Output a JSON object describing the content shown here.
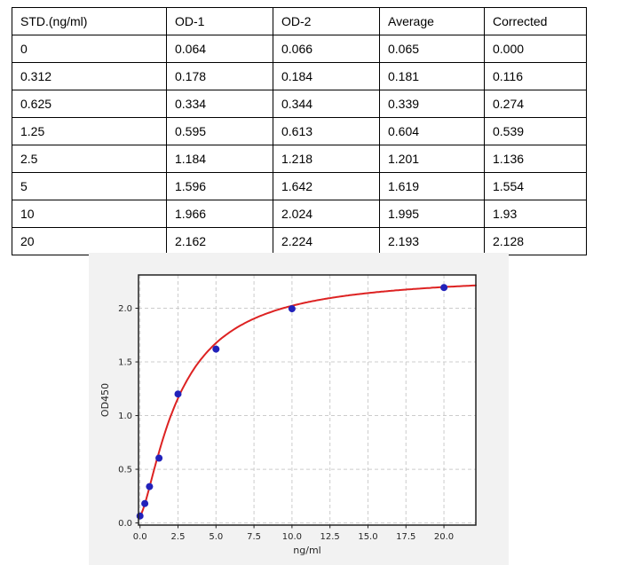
{
  "table": {
    "headers": [
      "STD.(ng/ml)",
      "OD-1",
      "OD-2",
      "Average",
      "Corrected"
    ],
    "rows": [
      [
        "0",
        "0.064",
        "0.066",
        "0.065",
        "0.000"
      ],
      [
        "0.312",
        "0.178",
        "0.184",
        "0.181",
        "0.116"
      ],
      [
        "0.625",
        "0.334",
        "0.344",
        "0.339",
        "0.274"
      ],
      [
        "1.25",
        "0.595",
        "0.613",
        "0.604",
        "0.539"
      ],
      [
        "2.5",
        "1.184",
        "1.218",
        "1.201",
        "1.136"
      ],
      [
        "5",
        "1.596",
        "1.642",
        "1.619",
        "1.554"
      ],
      [
        "10",
        "1.966",
        "2.024",
        "1.995",
        "1.93"
      ],
      [
        "20",
        "2.162",
        "2.224",
        "2.193",
        "2.128"
      ]
    ]
  },
  "chart_data": {
    "type": "scatter",
    "title": "",
    "xlabel": "ng/ml",
    "ylabel": "OD450",
    "points": {
      "x": [
        0,
        0.312,
        0.625,
        1.25,
        2.5,
        5,
        10,
        20
      ],
      "y": [
        0.065,
        0.181,
        0.339,
        0.604,
        1.201,
        1.619,
        1.995,
        2.193
      ]
    },
    "fit_curve": {
      "model": "4PL",
      "bottom": 0.065,
      "top": 2.32,
      "ec50": 2.6,
      "hill": 1.4,
      "x_start": 0,
      "x_end": 22.1
    },
    "xticks": {
      "values": [
        0,
        2.5,
        5,
        7.5,
        10,
        12.5,
        15,
        17.5,
        20
      ],
      "labels": [
        "0.0",
        "2.5",
        "5.0",
        "7.5",
        "10.0",
        "12.5",
        "15.0",
        "17.5",
        "20.0"
      ]
    },
    "yticks": {
      "values": [
        0,
        0.5,
        1,
        1.5,
        2
      ],
      "labels": [
        "0.0",
        "0.5",
        "1.0",
        "1.5",
        "2.0"
      ]
    },
    "xlim": [
      -0.1,
      22.1
    ],
    "ylim": [
      -0.02,
      2.31
    ],
    "grid": true,
    "legend": "none",
    "colors": {
      "curve": "#dd2222",
      "points": "#2222bb",
      "figure_bg": "#f2f2f2",
      "plot_bg": "#ffffff",
      "grid": "#cccccc",
      "spine": "#222222",
      "text": "#262626"
    }
  }
}
